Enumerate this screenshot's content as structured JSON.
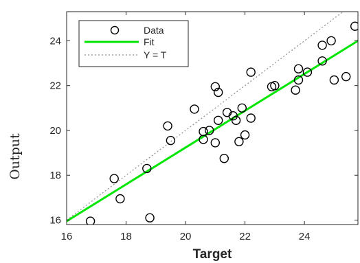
{
  "chart_data": {
    "type": "scatter",
    "title": "",
    "xlabel": "Target",
    "ylabel": "Output",
    "xlim": [
      16,
      25.8
    ],
    "ylim": [
      15.8,
      25.3
    ],
    "xticks": [
      "16",
      "18",
      "20",
      "22",
      "24"
    ],
    "xtick_values": [
      16,
      18,
      20,
      22,
      24
    ],
    "yticks": [
      "16",
      "18",
      "20",
      "22",
      "24"
    ],
    "ytick_values": [
      16,
      18,
      20,
      22,
      24
    ],
    "grid": false,
    "legend_position": "top-left",
    "series": [
      {
        "name": "Data",
        "kind": "points",
        "marker": "circle-open",
        "color": "#000000",
        "x": [
          16.8,
          17.6,
          17.8,
          18.7,
          18.8,
          19.4,
          19.5,
          20.3,
          20.6,
          20.6,
          20.8,
          21.0,
          21.0,
          21.1,
          21.1,
          21.3,
          21.4,
          21.6,
          21.7,
          21.8,
          21.9,
          22.0,
          22.2,
          22.2,
          22.9,
          23.0,
          23.7,
          23.8,
          23.8,
          24.1,
          24.6,
          24.6,
          24.9,
          25.0,
          25.4,
          25.7
        ],
        "y": [
          15.95,
          17.85,
          16.95,
          18.3,
          16.1,
          20.2,
          19.55,
          20.95,
          19.95,
          19.6,
          20.0,
          21.95,
          19.45,
          21.7,
          20.45,
          18.75,
          20.8,
          20.65,
          20.45,
          19.5,
          21.0,
          19.8,
          20.55,
          22.6,
          21.95,
          22.0,
          21.8,
          22.75,
          22.25,
          22.6,
          23.1,
          23.8,
          24.0,
          22.25,
          22.4,
          24.65
        ]
      },
      {
        "name": "Fit",
        "kind": "line",
        "color": "#00e600",
        "x": [
          16,
          25.8
        ],
        "y": [
          15.95,
          24.0
        ]
      },
      {
        "name": "Y = T",
        "kind": "line",
        "style": "dotted",
        "color": "#8c8c8c",
        "x": [
          16,
          25.3
        ],
        "y": [
          16,
          25.3
        ]
      }
    ]
  }
}
